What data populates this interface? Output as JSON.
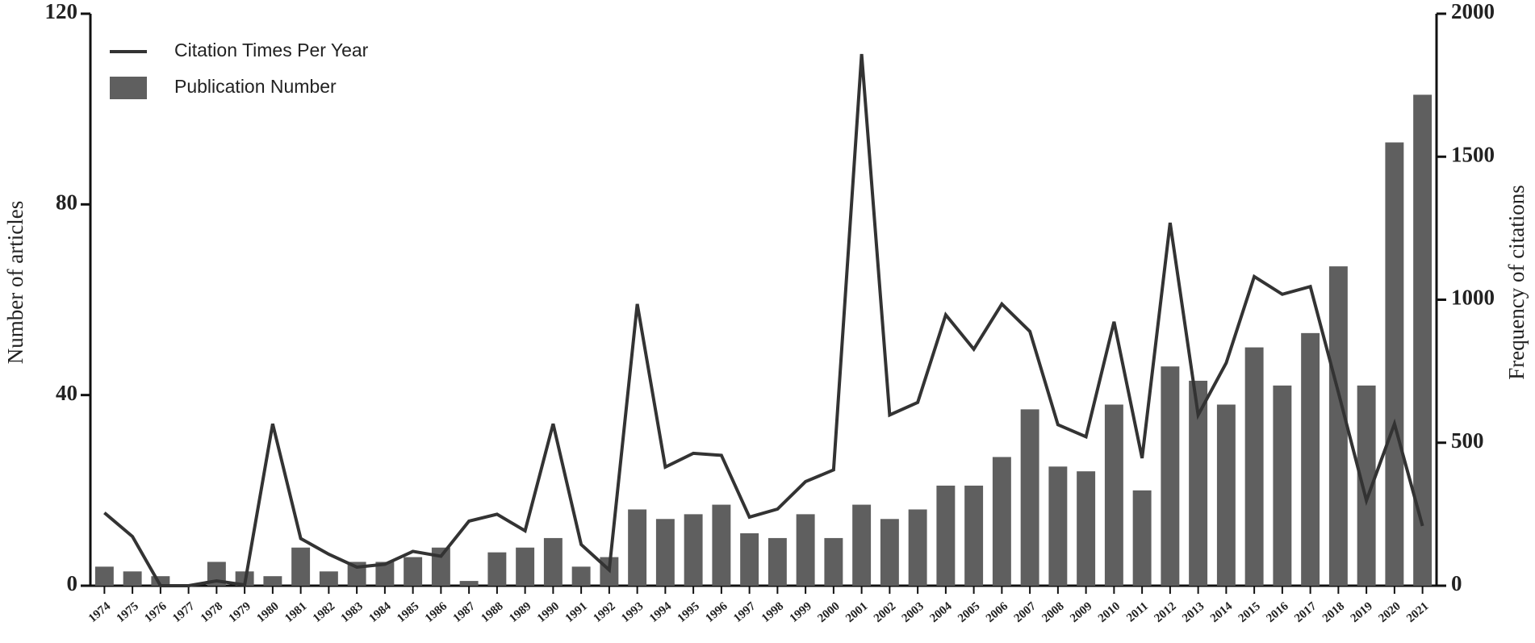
{
  "chart_data": {
    "type": "bar",
    "categories": [
      "1974",
      "1975",
      "1976",
      "1977",
      "1978",
      "1979",
      "1980",
      "1981",
      "1982",
      "1983",
      "1984",
      "1985",
      "1986",
      "1987",
      "1988",
      "1989",
      "1990",
      "1991",
      "1992",
      "1993",
      "1994",
      "1995",
      "1996",
      "1997",
      "1998",
      "1999",
      "2000",
      "2001",
      "2002",
      "2003",
      "2004",
      "2005",
      "2006",
      "2007",
      "2008",
      "2009",
      "2010",
      "2011",
      "2012",
      "2013",
      "2014",
      "2015",
      "2016",
      "2017",
      "2018",
      "2019",
      "2020",
      "2021"
    ],
    "series": [
      {
        "name": "Citation Times Per Year",
        "type": "line",
        "axis": "y2",
        "color": "#333333",
        "values": [
          255,
          172,
          0,
          0,
          17,
          3,
          566,
          165,
          110,
          65,
          75,
          120,
          103,
          226,
          250,
          192,
          566,
          144,
          55,
          985,
          415,
          463,
          456,
          240,
          268,
          364,
          405,
          1859,
          597,
          641,
          947,
          827,
          985,
          889,
          563,
          521,
          923,
          446,
          1269,
          597,
          779,
          1081,
          1019,
          1046,
          676,
          298,
          566,
          209
        ]
      },
      {
        "name": "Publication Number",
        "type": "bar",
        "color": "#5f5f5f",
        "values": [
          4,
          3,
          2,
          0,
          5,
          3,
          2,
          8,
          3,
          5,
          5,
          6,
          8,
          1,
          7,
          8,
          10,
          4,
          6,
          16,
          14,
          15,
          17,
          11,
          10,
          15,
          10,
          17,
          14,
          16,
          21,
          21,
          27,
          37,
          25,
          24,
          38,
          20,
          46,
          43,
          38,
          50,
          42,
          53,
          67,
          42,
          93,
          103
        ]
      }
    ],
    "ylabel": "Number of articles",
    "y2label": "Frequency of citations",
    "ylim": [
      0,
      120
    ],
    "yticks": [
      0,
      40,
      80,
      120
    ],
    "y2lim": [
      0,
      2000
    ],
    "y2ticks": [
      0,
      500,
      1000,
      1500,
      2000
    ],
    "legend": "upper left"
  }
}
